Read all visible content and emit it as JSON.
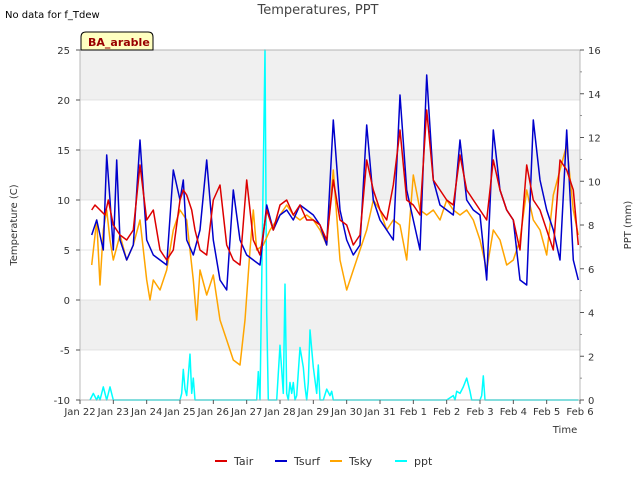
{
  "chart_data": {
    "type": "line",
    "title": "Temperatures, PPT",
    "note": "No data for f_Tdew",
    "badge": "BA_arable",
    "xlabel": "Time",
    "ylabel_left": "Temperature (C)",
    "ylabel_right": "PPT (mm)",
    "ylim_left": [
      -10,
      25
    ],
    "ylim_right": [
      0,
      16
    ],
    "xlim_days": [
      0,
      15
    ],
    "left_ticks": [
      -10,
      -5,
      0,
      5,
      10,
      15,
      20,
      25
    ],
    "right_ticks": [
      0,
      2,
      4,
      6,
      8,
      10,
      12,
      14,
      16
    ],
    "x_tick_labels": [
      "Jan 22",
      "Jan 23",
      "Jan 24",
      "Jan 25",
      "Jan 26",
      "Jan 27",
      "Jan 28",
      "Jan 29",
      "Jan 30",
      "Jan 31",
      "Feb 1",
      "Feb 2",
      "Feb 3",
      "Feb 4",
      "Feb 5",
      "Feb 6"
    ],
    "bands": [
      [
        -5,
        0
      ],
      [
        10,
        15
      ],
      [
        20,
        25
      ]
    ],
    "series": [
      {
        "name": "Tair",
        "color": "#dd0000",
        "axis": "left",
        "x": [
          0.35,
          0.45,
          0.6,
          0.75,
          0.85,
          1.0,
          1.2,
          1.4,
          1.6,
          1.8,
          2.0,
          2.2,
          2.4,
          2.5,
          2.6,
          2.8,
          3.0,
          3.1,
          3.2,
          3.35,
          3.45,
          3.6,
          3.8,
          4.0,
          4.2,
          4.4,
          4.6,
          4.8,
          5.0,
          5.2,
          5.4,
          5.6,
          5.8,
          6.0,
          6.2,
          6.4,
          6.6,
          6.8,
          7.0,
          7.2,
          7.4,
          7.6,
          7.8,
          8.0,
          8.2,
          8.4,
          8.6,
          8.8,
          9.0,
          9.2,
          9.4,
          9.6,
          9.8,
          10.0,
          10.2,
          10.4,
          10.6,
          10.8,
          11.0,
          11.2,
          11.4,
          11.6,
          11.8,
          12.0,
          12.2,
          12.4,
          12.6,
          12.8,
          13.0,
          13.2,
          13.4,
          13.6,
          13.8,
          14.0,
          14.2,
          14.4,
          14.6,
          14.8,
          14.95
        ],
        "y": [
          9.0,
          9.5,
          9.0,
          8.5,
          10.0,
          7.5,
          6.5,
          6.0,
          7.0,
          13.5,
          8.0,
          9.0,
          5.0,
          4.5,
          4.0,
          5.0,
          10.0,
          11.0,
          10.5,
          9.0,
          7.0,
          5.0,
          4.5,
          10.0,
          11.5,
          5.5,
          4.0,
          3.5,
          12.0,
          6.0,
          4.5,
          9.0,
          7.0,
          9.5,
          10.0,
          8.5,
          9.5,
          8.0,
          8.0,
          7.5,
          6.0,
          12.0,
          8.0,
          7.5,
          5.5,
          6.5,
          14.0,
          11.0,
          9.0,
          8.0,
          11.5,
          17.0,
          10.0,
          9.5,
          8.5,
          19.0,
          12.0,
          11.0,
          10.0,
          9.5,
          14.5,
          11.0,
          10.0,
          9.0,
          8.0,
          14.0,
          11.0,
          9.0,
          8.0,
          5.0,
          13.5,
          10.0,
          9.0,
          7.0,
          5.0,
          14.0,
          13.0,
          11.0,
          5.5
        ]
      },
      {
        "name": "Tsurf",
        "color": "#0000cc",
        "axis": "left",
        "x": [
          0.35,
          0.5,
          0.7,
          0.8,
          0.9,
          1.0,
          1.1,
          1.2,
          1.4,
          1.6,
          1.8,
          2.0,
          2.2,
          2.4,
          2.6,
          2.8,
          3.0,
          3.1,
          3.2,
          3.4,
          3.6,
          3.8,
          4.0,
          4.2,
          4.4,
          4.6,
          4.8,
          5.0,
          5.2,
          5.4,
          5.6,
          5.8,
          6.0,
          6.2,
          6.4,
          6.6,
          6.8,
          7.0,
          7.2,
          7.4,
          7.6,
          7.8,
          8.0,
          8.2,
          8.4,
          8.6,
          8.8,
          9.0,
          9.2,
          9.4,
          9.6,
          9.8,
          10.0,
          10.2,
          10.4,
          10.6,
          10.8,
          11.0,
          11.2,
          11.4,
          11.6,
          11.8,
          12.0,
          12.2,
          12.4,
          12.6,
          12.8,
          13.0,
          13.2,
          13.4,
          13.6,
          13.8,
          14.0,
          14.2,
          14.4,
          14.6,
          14.8,
          14.95
        ],
        "y": [
          6.5,
          8.0,
          5.0,
          14.5,
          10.0,
          5.0,
          14.0,
          6.0,
          4.0,
          5.5,
          16.0,
          6.0,
          4.5,
          4.0,
          3.5,
          13.0,
          10.0,
          12.0,
          6.0,
          4.5,
          7.0,
          14.0,
          6.0,
          2.0,
          1.0,
          11.0,
          6.0,
          4.5,
          4.0,
          3.5,
          9.5,
          7.0,
          8.5,
          9.0,
          8.0,
          9.5,
          9.0,
          8.5,
          7.5,
          5.5,
          18.0,
          9.0,
          6.0,
          4.5,
          5.5,
          17.5,
          10.0,
          8.0,
          7.0,
          6.0,
          20.5,
          11.0,
          8.0,
          5.0,
          22.5,
          12.0,
          9.5,
          9.0,
          8.5,
          16.0,
          10.0,
          9.0,
          8.5,
          2.0,
          17.0,
          11.0,
          9.0,
          8.0,
          2.0,
          1.5,
          18.0,
          12.0,
          9.0,
          7.0,
          4.0,
          17.0,
          4.0,
          2.0
        ]
      },
      {
        "name": "Tsky",
        "color": "#ffa500",
        "axis": "left",
        "x": [
          0.35,
          0.5,
          0.6,
          0.7,
          0.8,
          0.9,
          1.0,
          1.2,
          1.4,
          1.6,
          1.8,
          2.0,
          2.1,
          2.2,
          2.4,
          2.6,
          2.8,
          3.0,
          3.2,
          3.4,
          3.5,
          3.6,
          3.8,
          4.0,
          4.2,
          4.4,
          4.6,
          4.8,
          4.95,
          5.1,
          5.2,
          5.3,
          5.5,
          5.7,
          5.9,
          6.0,
          6.2,
          6.4,
          6.6,
          6.8,
          7.0,
          7.2,
          7.4,
          7.6,
          7.8,
          8.0,
          8.2,
          8.4,
          8.6,
          8.8,
          9.0,
          9.2,
          9.4,
          9.6,
          9.8,
          10.0,
          10.2,
          10.4,
          10.6,
          10.8,
          11.0,
          11.2,
          11.4,
          11.6,
          11.8,
          12.0,
          12.2,
          12.4,
          12.6,
          12.8,
          13.0,
          13.2,
          13.4,
          13.6,
          13.8,
          14.0,
          14.2,
          14.4,
          14.6,
          14.8,
          14.95
        ],
        "y": [
          3.5,
          8.0,
          1.5,
          7.0,
          9.0,
          6.0,
          4.0,
          6.5,
          4.0,
          5.5,
          8.0,
          2.0,
          0.0,
          2.0,
          1.0,
          3.0,
          7.0,
          9.0,
          8.0,
          2.0,
          -2.0,
          3.0,
          0.5,
          2.5,
          -2.0,
          -4.0,
          -6.0,
          -6.5,
          -2.0,
          5.0,
          9.0,
          5.0,
          5.5,
          7.0,
          8.0,
          8.5,
          9.5,
          8.5,
          8.0,
          8.5,
          8.0,
          7.0,
          5.5,
          13.0,
          4.0,
          1.0,
          3.0,
          5.0,
          7.0,
          10.0,
          9.0,
          7.0,
          8.0,
          7.5,
          4.0,
          12.5,
          9.0,
          8.5,
          9.0,
          8.0,
          10.0,
          9.0,
          8.5,
          9.0,
          8.0,
          6.0,
          3.0,
          7.0,
          6.0,
          3.5,
          4.0,
          6.0,
          11.0,
          8.0,
          7.0,
          4.5,
          10.5,
          13.0,
          15.5,
          9.0,
          6.5
        ]
      },
      {
        "name": "ppt",
        "color": "#00ffff",
        "axis": "right",
        "x": [
          0.3,
          0.4,
          0.5,
          0.55,
          0.6,
          0.7,
          0.8,
          0.9,
          1.0,
          2.0,
          3.0,
          3.05,
          3.1,
          3.15,
          3.2,
          3.3,
          3.35,
          3.4,
          3.45,
          3.55,
          3.7,
          4.5,
          5.3,
          5.35,
          5.4,
          5.5,
          5.55,
          5.6,
          5.65,
          5.7,
          5.75,
          5.9,
          6.0,
          6.1,
          6.15,
          6.2,
          6.25,
          6.3,
          6.35,
          6.4,
          6.45,
          6.5,
          6.6,
          6.7,
          6.75,
          6.8,
          6.85,
          6.9,
          7.0,
          7.1,
          7.15,
          7.2,
          7.3,
          7.4,
          7.5,
          7.55,
          7.6,
          7.7,
          7.75,
          8.0,
          11.0,
          11.2,
          11.25,
          11.3,
          11.4,
          11.5,
          11.6,
          11.7,
          11.75,
          11.8,
          11.9,
          12.0,
          12.05,
          12.1,
          12.15,
          12.25,
          12.5,
          14.0,
          14.95
        ],
        "y": [
          0,
          0.3,
          0,
          0.2,
          0,
          0.6,
          0,
          0.6,
          0,
          0,
          0,
          0.3,
          1.4,
          0.5,
          0.2,
          2.1,
          0.3,
          1.0,
          0,
          0,
          0,
          0,
          0,
          1.3,
          0,
          10.5,
          16.0,
          4.0,
          0,
          0,
          0,
          0,
          2.5,
          0.3,
          5.3,
          0.3,
          0,
          0.8,
          0.3,
          0.8,
          0,
          0.2,
          2.4,
          1.5,
          0.6,
          0,
          0.8,
          3.2,
          1.5,
          0.3,
          1.6,
          0,
          0,
          0.5,
          0.2,
          0.4,
          0,
          0,
          0,
          0,
          0,
          0.2,
          0,
          0.4,
          0.3,
          0.6,
          1.0,
          0.4,
          0,
          0,
          0,
          0,
          0.2,
          1.1,
          0,
          0,
          0,
          0,
          0
        ]
      }
    ]
  }
}
